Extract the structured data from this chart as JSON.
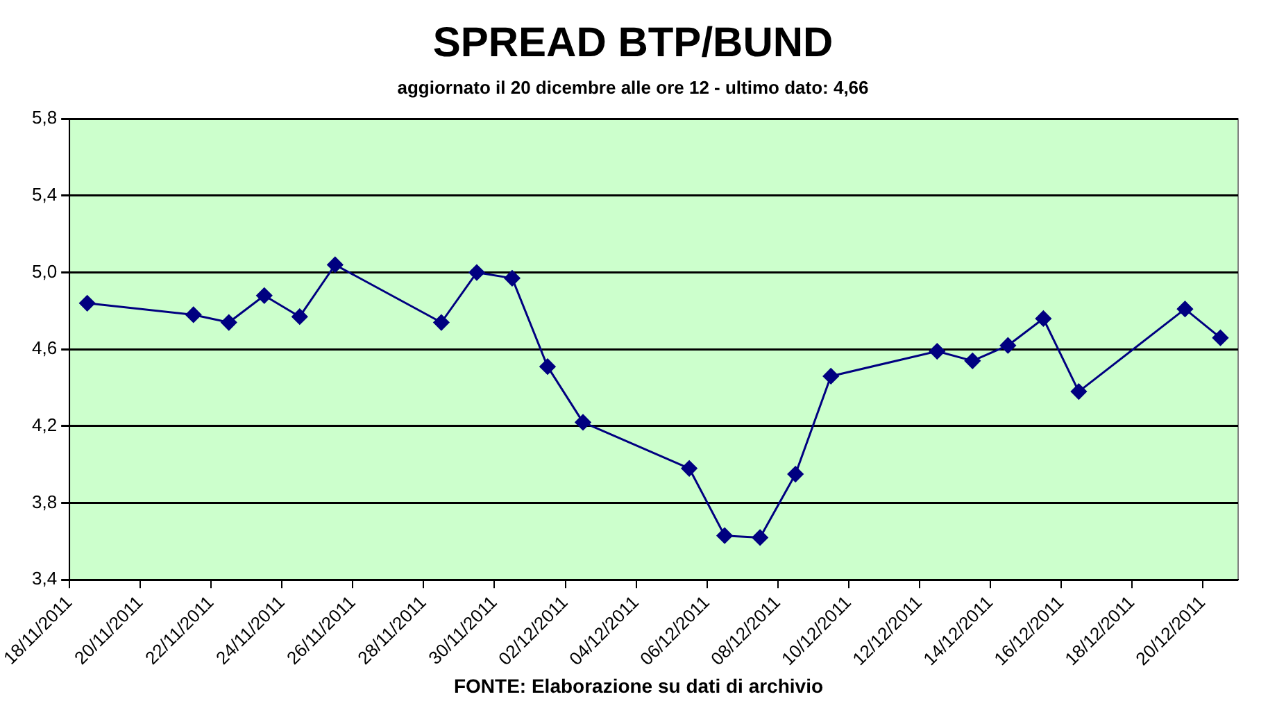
{
  "chart_data": {
    "type": "line",
    "title": "SPREAD BTP/BUND",
    "subtitle": "aggiornato il 20 dicembre alle ore 12 - ultimo dato: 4,66",
    "annotations": [
      "FONTE: Elaborazione su dati di archivio"
    ],
    "x": [
      "2011-11-18T12:00",
      "2011-11-21T12:00",
      "2011-11-22T12:00",
      "2011-11-23T12:00",
      "2011-11-24T12:00",
      "2011-11-25T12:00",
      "2011-11-28T12:00",
      "2011-11-29T12:00",
      "2011-11-30T12:00",
      "2011-12-01T12:00",
      "2011-12-02T12:00",
      "2011-12-05T12:00",
      "2011-12-06T12:00",
      "2011-12-07T12:00",
      "2011-12-08T12:00",
      "2011-12-09T12:00",
      "2011-12-12T12:00",
      "2011-12-13T12:00",
      "2011-12-14T12:00",
      "2011-12-15T12:00",
      "2011-12-16T12:00",
      "2011-12-19T12:00",
      "2011-12-20T12:00"
    ],
    "series": [
      {
        "color": "#000080",
        "values": [
          4.84,
          4.78,
          4.74,
          4.88,
          4.77,
          5.04,
          4.74,
          5.0,
          4.97,
          4.51,
          4.22,
          3.98,
          3.63,
          3.62,
          3.95,
          4.46,
          4.59,
          4.54,
          4.62,
          4.76,
          4.38,
          4.81,
          4.66
        ]
      }
    ],
    "xlim": [
      "2011-11-18",
      "2011-12-21"
    ],
    "xticks": [
      {
        "value": "2011-11-18",
        "label": "18/11/2011"
      },
      {
        "value": "2011-11-20",
        "label": "20/11/2011"
      },
      {
        "value": "2011-11-22",
        "label": "22/11/2011"
      },
      {
        "value": "2011-11-24",
        "label": "24/11/2011"
      },
      {
        "value": "2011-11-26",
        "label": "26/11/2011"
      },
      {
        "value": "2011-11-28",
        "label": "28/11/2011"
      },
      {
        "value": "2011-11-30",
        "label": "30/11/2011"
      },
      {
        "value": "2011-12-02",
        "label": "02/12/2011"
      },
      {
        "value": "2011-12-04",
        "label": "04/12/2011"
      },
      {
        "value": "2011-12-06",
        "label": "06/12/2011"
      },
      {
        "value": "2011-12-08",
        "label": "08/12/2011"
      },
      {
        "value": "2011-12-10",
        "label": "10/12/2011"
      },
      {
        "value": "2011-12-12",
        "label": "12/12/2011"
      },
      {
        "value": "2011-12-14",
        "label": "14/12/2011"
      },
      {
        "value": "2011-12-16",
        "label": "16/12/2011"
      },
      {
        "value": "2011-12-18",
        "label": "18/12/2011"
      },
      {
        "value": "2011-12-20",
        "label": "20/12/2011"
      }
    ],
    "ylim": [
      3.4,
      5.8
    ],
    "yticks": [
      {
        "value": 3.4,
        "label": "3,4"
      },
      {
        "value": 3.8,
        "label": "3,8"
      },
      {
        "value": 4.2,
        "label": "4,2"
      },
      {
        "value": 4.6,
        "label": "4,6"
      },
      {
        "value": 5.0,
        "label": "5,0"
      },
      {
        "value": 5.4,
        "label": "5,4"
      },
      {
        "value": 5.8,
        "label": "5,8"
      }
    ],
    "grid": "y",
    "legend": false,
    "marker": "diamond",
    "line_style": "solid"
  }
}
